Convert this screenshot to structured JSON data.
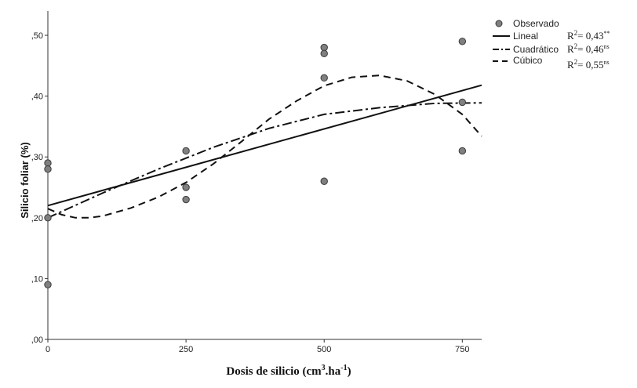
{
  "chart_data": {
    "type": "scatter",
    "title": "",
    "xlabel": "Dosis de silicio (cm",
    "xlabel_sup1": "3",
    "xlabel_mid": ".ha",
    "xlabel_sup2": "-1",
    "xlabel_end": ")",
    "ylabel": "Silicio foliar (%)",
    "xlim": [
      0,
      785
    ],
    "ylim": [
      0,
      0.54
    ],
    "x_ticks": [
      0,
      250,
      500,
      750
    ],
    "x_tick_labels": [
      "0",
      "250",
      "500",
      "750"
    ],
    "y_ticks": [
      0,
      0.1,
      0.2,
      0.3,
      0.4,
      0.5
    ],
    "y_tick_labels": [
      ",00",
      ",10",
      ",20",
      ",30",
      ",40",
      ",50"
    ],
    "grid": false,
    "legend_position": "top-right",
    "observed": {
      "name": "Observado",
      "points": [
        {
          "x": 0,
          "y": 0.29
        },
        {
          "x": 0,
          "y": 0.28
        },
        {
          "x": 0,
          "y": 0.2
        },
        {
          "x": 0,
          "y": 0.09
        },
        {
          "x": 250,
          "y": 0.31
        },
        {
          "x": 250,
          "y": 0.25
        },
        {
          "x": 250,
          "y": 0.23
        },
        {
          "x": 500,
          "y": 0.48
        },
        {
          "x": 500,
          "y": 0.47
        },
        {
          "x": 500,
          "y": 0.43
        },
        {
          "x": 500,
          "y": 0.26
        },
        {
          "x": 750,
          "y": 0.49
        },
        {
          "x": 750,
          "y": 0.39
        },
        {
          "x": 750,
          "y": 0.31
        }
      ]
    },
    "series": [
      {
        "name": "Lineal",
        "style": "solid",
        "r2": "R",
        "r2_sup": "2",
        "r2_value": "= 0,43",
        "r2_sig": "**",
        "x": [
          0,
          785
        ],
        "y": [
          0.22,
          0.418
        ]
      },
      {
        "name": "Cuadrático",
        "style": "dashdot",
        "r2": "R",
        "r2_sup": "2",
        "r2_value": "= 0,46",
        "r2_sig": "ns",
        "x": [
          0,
          100,
          200,
          300,
          400,
          500,
          600,
          700,
          785
        ],
        "y": [
          0.2,
          0.241,
          0.28,
          0.316,
          0.347,
          0.37,
          0.381,
          0.388,
          0.389
        ]
      },
      {
        "name": "Cúbico",
        "style": "dashed",
        "r2": "R",
        "r2_sup": "2",
        "r2_value": "= 0,55",
        "r2_sig": "ns",
        "x": [
          0,
          25,
          50,
          75,
          100,
          150,
          200,
          250,
          300,
          350,
          400,
          450,
          500,
          550,
          600,
          650,
          700,
          750,
          785
        ],
        "y": [
          0.215,
          0.205,
          0.2,
          0.2,
          0.203,
          0.216,
          0.234,
          0.258,
          0.289,
          0.325,
          0.362,
          0.392,
          0.417,
          0.431,
          0.434,
          0.425,
          0.403,
          0.37,
          0.334
        ]
      }
    ]
  }
}
